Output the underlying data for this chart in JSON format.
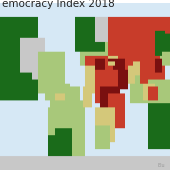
{
  "title": "emocracy Index 2018",
  "source_text": "Eiu",
  "background_color": "#ffffff",
  "title_fontsize": 7.5,
  "title_color": "#222222",
  "ocean_color": "#d6e8f5",
  "map_colors": {
    "full_democracy": "#1a6b1a",
    "flawed_democracy": "#a8c87a",
    "hybrid": "#d4c87a",
    "authoritarian_light": "#e08050",
    "authoritarian_mid": "#c83c2a",
    "authoritarian_dark": "#7a1010",
    "no_data": "#c8c8c8"
  },
  "country_colors": {
    "Norway": "#1a6b1a",
    "Sweden": "#1a6b1a",
    "Finland": "#1a6b1a",
    "Denmark": "#1a6b1a",
    "Iceland": "#1a6b1a",
    "Canada": "#1a6b1a",
    "Australia": "#1a6b1a",
    "New Zealand": "#1a6b1a",
    "Ireland": "#1a6b1a",
    "Germany": "#1a6b1a",
    "Netherlands": "#1a6b1a",
    "Switzerland": "#1a6b1a",
    "Austria": "#1a6b1a",
    "Luxembourg": "#1a6b1a",
    "Belgium": "#1a6b1a",
    "Czech Republic": "#1a6b1a",
    "United Kingdom": "#1a6b1a",
    "Spain": "#1a6b1a",
    "Estonia": "#1a6b1a",
    "Slovenia": "#1a6b1a",
    "South Korea": "#1a6b1a",
    "Uruguay": "#1a6b1a",
    "Costa Rica": "#1a6b1a",
    "Mauritius": "#1a6b1a",
    "Malta": "#1a6b1a",
    "Japan": "#a8c87a",
    "United States": "#a8c87a",
    "France": "#a8c87a",
    "Italy": "#a8c87a",
    "Portugal": "#a8c87a",
    "Taiwan": "#a8c87a",
    "Chile": "#a8c87a",
    "Israel": "#a8c87a",
    "Argentina": "#a8c87a",
    "Brazil": "#a8c87a",
    "Colombia": "#a8c87a",
    "India": "#a8c87a",
    "Indonesia": "#a8c87a",
    "Malaysia": "#a8c87a",
    "Philippines": "#a8c87a",
    "Sri Lanka": "#a8c87a",
    "Ghana": "#a8c87a",
    "South Africa": "#a8c87a",
    "Tunisia": "#a8c87a",
    "Ukraine": "#a8c87a",
    "Latvia": "#a8c87a",
    "Lithuania": "#a8c87a",
    "Slovakia": "#a8c87a",
    "Hungary": "#a8c87a",
    "Greece": "#a8c87a",
    "Romania": "#a8c87a",
    "Bulgaria": "#a8c87a",
    "Croatia": "#a8c87a",
    "Poland": "#1a6b1a",
    "Serbia": "#a8c87a",
    "Albania": "#a8c87a",
    "Mongolia": "#a8c87a",
    "Timor-Leste": "#a8c87a",
    "Botswana": "#a8c87a",
    "Namibia": "#a8c87a",
    "Dominican Republic": "#a8c87a",
    "Panama": "#a8c87a",
    "Guyana": "#a8c87a",
    "Suriname": "#a8c87a",
    "Peru": "#a8c87a",
    "Bolivia": "#d4c87a",
    "Ecuador": "#d4c87a",
    "Mexico": "#a8c87a",
    "Paraguay": "#a8c87a",
    "Bangladesh": "#d4c87a",
    "Kenya": "#d4c87a",
    "Tanzania": "#d4c87a",
    "Uganda": "#d4c87a",
    "Senegal": "#d4c87a",
    "Niger": "#d4c87a",
    "Zambia": "#d4c87a",
    "Malawi": "#d4c87a",
    "Mozambique": "#d4c87a",
    "Madagascar": "#d4c87a",
    "Papua New Guinea": "#d4c87a",
    "Lebanon": "#d4c87a",
    "Jordan": "#d4c87a",
    "Kuwait": "#d4c87a",
    "Morocco": "#d4c87a",
    "Guatemala": "#d4c87a",
    "Honduras": "#d4c87a",
    "El Salvador": "#d4c87a",
    "Nicaragua": "#d4c87a",
    "Venezuela": "#e08050",
    "Nigeria": "#e08050",
    "Mali": "#e08050",
    "Thailand": "#e08050",
    "Myanmar": "#e08050",
    "Pakistan": "#e08050",
    "Afghanistan": "#e08050",
    "Iraq": "#e08050",
    "Turkey": "#e08050",
    "Gabon": "#e08050",
    "Cameroon": "#e08050",
    "Angola": "#e08050",
    "Zimbabwe": "#c83c2a",
    "Haiti": "#c83c2a",
    "Cuba": "#c83c2a",
    "Belarus": "#c83c2a",
    "Kazakhstan": "#c83c2a",
    "Uzbekistan": "#c83c2a",
    "Azerbaijan": "#c83c2a",
    "Kyrgyzstan": "#c83c2a",
    "Tajikistan": "#c83c2a",
    "Laos": "#c83c2a",
    "Vietnam": "#c83c2a",
    "Cambodia": "#c83c2a",
    "China": "#c83c2a",
    "Russia": "#c83c2a",
    "Egypt": "#c83c2a",
    "Algeria": "#c83c2a",
    "Sudan": "#c83c2a",
    "Ethiopia": "#c83c2a",
    "Chad": "#c83c2a",
    "Libya": "#c83c2a",
    "Iran": "#7a1010",
    "Syria": "#7a1010",
    "Saudi Arabia": "#7a1010",
    "North Korea": "#7a1010",
    "Turkmenistan": "#7a1010",
    "Eritrea": "#7a1010",
    "Somalia": "#7a1010",
    "Congo": "#7a1010",
    "Central African Republic": "#7a1010",
    "Yemen": "#7a1010",
    "Greenland": "#c8c8c8",
    "Antarctica": "#c8c8c8"
  }
}
